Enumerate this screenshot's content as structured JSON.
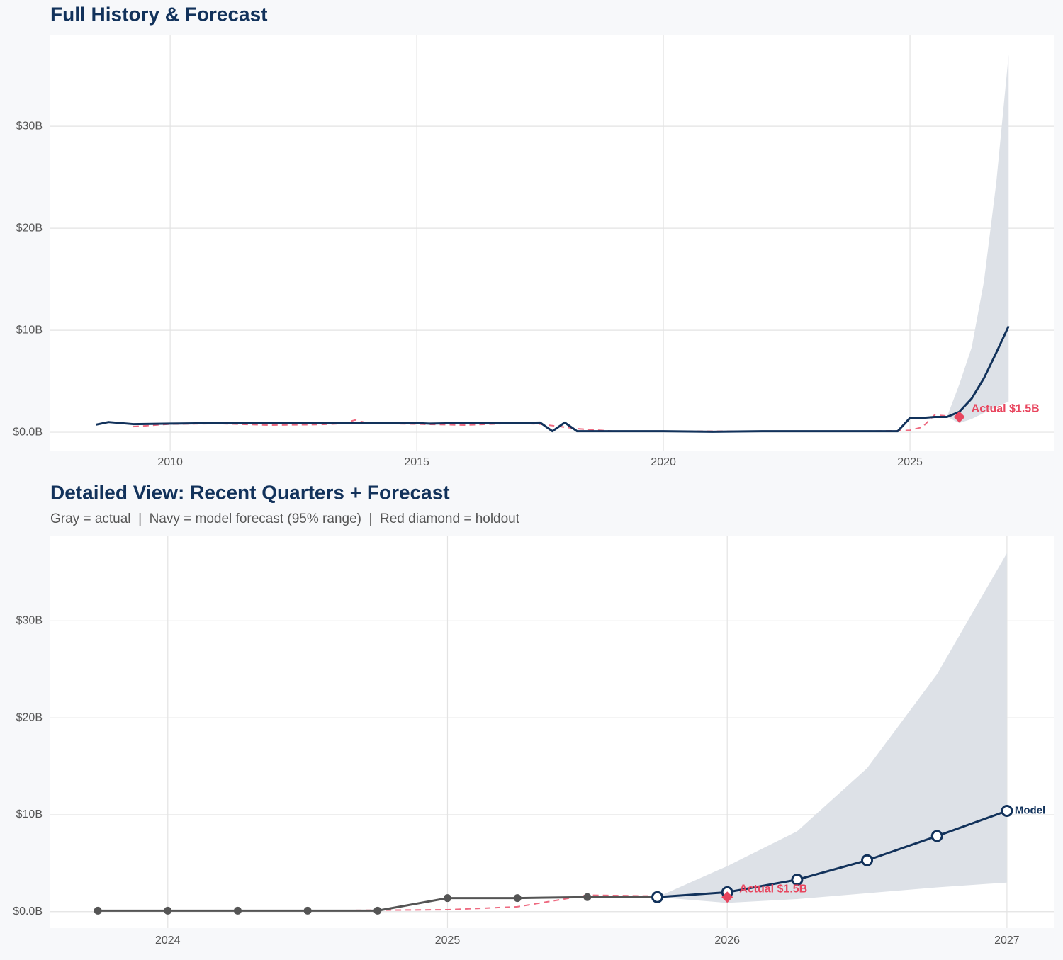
{
  "chart_data": [
    {
      "type": "line",
      "title": "Full History & Forecast",
      "xlim": [
        2007.57,
        2027.93
      ],
      "ylim": [
        -1.8,
        38.9
      ],
      "xticks": [
        2010,
        2015,
        2020,
        2025
      ],
      "yticks": [
        {
          "value": 0,
          "label": "$0.0B"
        },
        {
          "value": 10,
          "label": "$10B"
        },
        {
          "value": 20,
          "label": "$20B"
        },
        {
          "value": 30,
          "label": "$30B"
        }
      ],
      "grid": true,
      "band": {
        "color": "#dde1e7",
        "x": [
          2025.75,
          2026,
          2026.25,
          2026.5,
          2026.75,
          2027
        ],
        "upper": [
          1.5,
          4.7,
          8.3,
          14.8,
          24.5,
          37
        ],
        "lower": [
          1.5,
          0.9,
          1.3,
          1.9,
          2.5,
          3.0
        ]
      },
      "series": [
        {
          "color": "#ee6a80",
          "style": "dashed",
          "x": [
            2009.25,
            2010,
            2011,
            2012,
            2013,
            2013.5,
            2013.75,
            2014,
            2015,
            2016,
            2017,
            2017.5,
            2018.25,
            2019,
            2020,
            2021,
            2022,
            2023,
            2024,
            2024.75,
            2025,
            2025.25,
            2025.5,
            2025.75
          ],
          "values": [
            0.55,
            0.8,
            0.85,
            0.7,
            0.75,
            0.85,
            1.2,
            0.9,
            0.8,
            0.7,
            0.9,
            0.8,
            0.35,
            0.1,
            0.1,
            0.1,
            0.1,
            0.1,
            0.1,
            0.15,
            0.2,
            0.5,
            1.7,
            1.6
          ]
        },
        {
          "color": "#12325b",
          "style": "solid",
          "x": [
            2008.5,
            2008.75,
            2009.25,
            2010,
            2011,
            2012,
            2013,
            2014,
            2015,
            2015.25,
            2016,
            2017,
            2017.5,
            2017.75,
            2018,
            2018.25,
            2019,
            2020,
            2021,
            2022,
            2023,
            2024,
            2024.75,
            2025,
            2025.25,
            2025.5,
            2025.75
          ],
          "values": [
            0.75,
            1.0,
            0.8,
            0.85,
            0.9,
            0.9,
            0.9,
            0.9,
            0.9,
            0.85,
            0.9,
            0.9,
            0.95,
            0.1,
            0.95,
            0.1,
            0.1,
            0.1,
            0.05,
            0.1,
            0.1,
            0.1,
            0.1,
            1.4,
            1.4,
            1.5,
            1.5
          ]
        },
        {
          "color": "#12325b",
          "style": "solid",
          "x": [
            2025.75,
            2026,
            2026.25,
            2026.5,
            2026.75,
            2027
          ],
          "values": [
            1.5,
            2.0,
            3.3,
            5.3,
            7.8,
            10.4
          ]
        }
      ],
      "holdout": {
        "x": 2026,
        "value": 1.5,
        "label": "Actual $1.5B",
        "color": "#e8455e"
      }
    },
    {
      "type": "line",
      "title": "Detailed View: Recent Quarters + Forecast",
      "subtitle": "Gray = actual  |  Navy = model forecast (95% range)  |  Red diamond = holdout",
      "xlim": [
        2023.58,
        2027.17
      ],
      "ylim": [
        -1.7,
        38.8
      ],
      "xticks": [
        2024,
        2025,
        2026,
        2027
      ],
      "yticks": [
        {
          "value": 0,
          "label": "$0.0B"
        },
        {
          "value": 10,
          "label": "$10B"
        },
        {
          "value": 20,
          "label": "$20B"
        },
        {
          "value": 30,
          "label": "$30B"
        }
      ],
      "grid": true,
      "band": {
        "color": "#dde1e7",
        "x": [
          2025.75,
          2026,
          2026.25,
          2026.5,
          2026.75,
          2027
        ],
        "upper": [
          1.5,
          4.7,
          8.3,
          14.8,
          24.5,
          37
        ],
        "lower": [
          1.5,
          0.9,
          1.3,
          1.9,
          2.5,
          3.0
        ]
      },
      "series": [
        {
          "color": "#ee6a80",
          "style": "dashed",
          "x": [
            2023.75,
            2024,
            2024.25,
            2024.5,
            2024.75,
            2025,
            2025.25,
            2025.5,
            2025.75
          ],
          "values": [
            0.1,
            0.1,
            0.1,
            0.1,
            0.15,
            0.2,
            0.5,
            1.7,
            1.6
          ]
        },
        {
          "color": "#555555",
          "style": "solid",
          "markers": "filled",
          "x": [
            2023.75,
            2024,
            2024.25,
            2024.5,
            2024.75,
            2025,
            2025.25,
            2025.5,
            2025.75
          ],
          "values": [
            0.1,
            0.1,
            0.1,
            0.1,
            0.1,
            1.4,
            1.4,
            1.5,
            1.5
          ]
        },
        {
          "name": "Model",
          "color": "#12325b",
          "style": "solid",
          "markers": "open",
          "x": [
            2025.75,
            2026,
            2026.25,
            2026.5,
            2026.75,
            2027
          ],
          "values": [
            1.5,
            2.0,
            3.3,
            5.3,
            7.8,
            10.4
          ]
        }
      ],
      "holdout": {
        "x": 2026,
        "value": 1.5,
        "label": "Actual $1.5B",
        "color": "#e8455e"
      }
    }
  ]
}
